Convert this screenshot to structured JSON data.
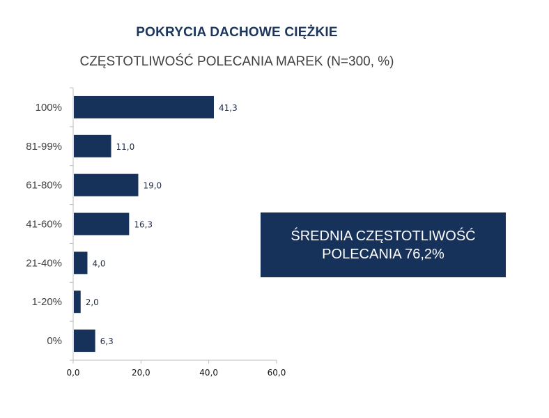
{
  "chart_data": {
    "type": "bar",
    "orientation": "horizontal",
    "title": "POKRYCIA DACHOWE CIĘŻKIE",
    "subtitle": "CZĘSTOTLIWOŚĆ POLECANIA MAREK (N=300, %)",
    "categories": [
      "100%",
      "81-99%",
      "61-80%",
      "41-60%",
      "21-40%",
      "1-20%",
      "0%"
    ],
    "values": [
      41.3,
      11.0,
      19.0,
      16.3,
      4.0,
      2.0,
      6.3
    ],
    "value_labels": [
      "41,3",
      "11,0",
      "19,0",
      "16,3",
      "4,0",
      "2,0",
      "6,3"
    ],
    "x_ticks": [
      0,
      20,
      40,
      60
    ],
    "x_tick_labels": [
      "0,0",
      "20,0",
      "40,0",
      "60,0"
    ],
    "xlim": [
      0,
      60
    ],
    "grid": false,
    "bar_color": "#16325a"
  },
  "callout": {
    "line1": "ŚREDNIA CZĘSTOTLIWOŚĆ",
    "line2": "POLECANIA 76,2%"
  }
}
